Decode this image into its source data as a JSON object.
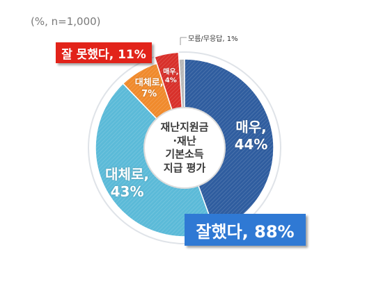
{
  "unit_note": "(%, n=1,000)",
  "center_label": "재난지원금\n·재난\n기본소득\n지급 평가",
  "callouts": {
    "bad": "잘 못했다, 11%",
    "good": "잘했다, 88%",
    "unknown": "모름/무응답, 1%"
  },
  "colors": {
    "very_good": "#2f5d9f",
    "fairly_good": "#5bbad8",
    "fairly_bad": "#f08a2c",
    "very_bad": "#d8302a",
    "unknown": "#b8b8b8",
    "bad_box": "#e2231a",
    "good_box": "#2f79d4"
  },
  "chart_data": {
    "type": "pie",
    "title": "",
    "slices": [
      {
        "name": "매우,",
        "value": 44,
        "label_line1": "매우,",
        "label_line2": "44%",
        "color": "#2f5d9f"
      },
      {
        "name": "대체로,",
        "value": 43,
        "label_line1": "대체로,",
        "label_line2": "43%",
        "color": "#5bbad8"
      },
      {
        "name": "대체로,",
        "value": 7,
        "label_line1": "대체로,",
        "label_line2": "7%",
        "color": "#f08a2c"
      },
      {
        "name": "매우,",
        "value": 4,
        "label_line1": "매우,",
        "label_line2": "4%",
        "color": "#d8302a"
      },
      {
        "name": "모름/무응답",
        "value": 1,
        "label_line1": "",
        "label_line2": "",
        "color": "#b8b8b8"
      }
    ],
    "groups": [
      {
        "name": "잘했다",
        "value": 88
      },
      {
        "name": "잘 못했다",
        "value": 11
      },
      {
        "name": "모름/무응답",
        "value": 1
      }
    ]
  }
}
